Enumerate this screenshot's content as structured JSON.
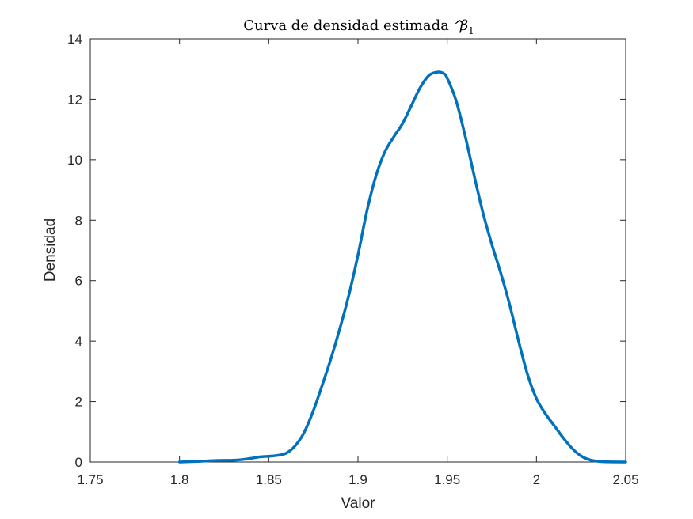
{
  "chart_data": {
    "type": "line",
    "title": "Curva de densidad estimada",
    "title_symbol": "β",
    "title_symbol_hat": "^",
    "title_subscript": "1",
    "xlabel": "Valor",
    "ylabel": "Densidad",
    "xlim": [
      1.75,
      2.05
    ],
    "ylim": [
      0,
      14
    ],
    "xticks": [
      1.75,
      1.8,
      1.85,
      1.9,
      1.95,
      2,
      2.05
    ],
    "xtick_labels": [
      "1.75",
      "1.8",
      "1.85",
      "1.9",
      "1.95",
      "2",
      "2.05"
    ],
    "yticks": [
      0,
      2,
      4,
      6,
      8,
      10,
      12,
      14
    ],
    "ytick_labels": [
      "0",
      "2",
      "4",
      "6",
      "8",
      "10",
      "12",
      "14"
    ],
    "grid": false,
    "line_color": "#0072BD",
    "series": [
      {
        "x": [
          1.8,
          1.81,
          1.82,
          1.83,
          1.835,
          1.84,
          1.845,
          1.85,
          1.855,
          1.86,
          1.865,
          1.87,
          1.875,
          1.88,
          1.885,
          1.89,
          1.895,
          1.9,
          1.905,
          1.91,
          1.915,
          1.92,
          1.925,
          1.93,
          1.935,
          1.94,
          1.945,
          1.948,
          1.95,
          1.955,
          1.96,
          1.965,
          1.97,
          1.975,
          1.98,
          1.985,
          1.99,
          1.995,
          2.0,
          2.005,
          2.01,
          2.015,
          2.02,
          2.025,
          2.03,
          2.035,
          2.04,
          2.05
        ],
        "y": [
          0.0,
          0.02,
          0.05,
          0.06,
          0.08,
          0.12,
          0.17,
          0.19,
          0.22,
          0.3,
          0.55,
          1.0,
          1.7,
          2.55,
          3.45,
          4.45,
          5.55,
          6.85,
          8.3,
          9.45,
          10.25,
          10.75,
          11.2,
          11.8,
          12.4,
          12.8,
          12.9,
          12.85,
          12.7,
          11.95,
          10.8,
          9.5,
          8.25,
          7.2,
          6.25,
          5.2,
          4.0,
          2.9,
          2.1,
          1.6,
          1.2,
          0.8,
          0.45,
          0.2,
          0.07,
          0.02,
          0.005,
          0.0
        ]
      }
    ]
  }
}
